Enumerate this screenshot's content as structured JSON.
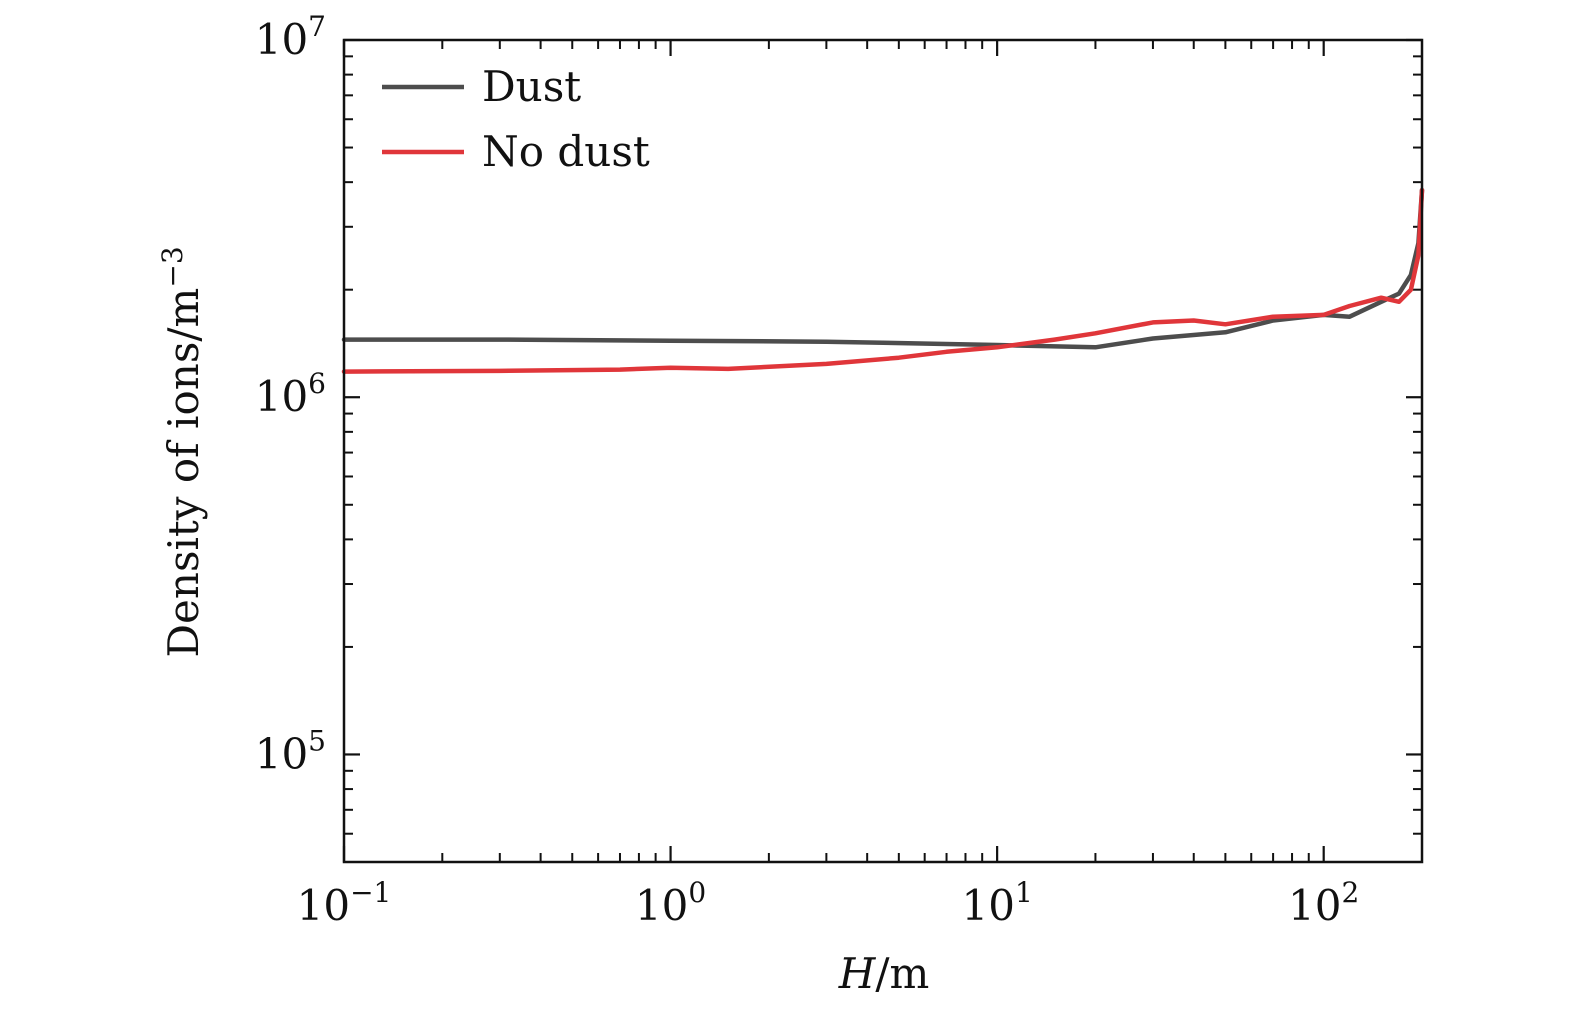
{
  "chart_data": {
    "type": "line",
    "xlabel": {
      "italic": "H",
      "rest": "/m"
    },
    "ylabel": {
      "text": "Density of ions/m",
      "sup": "−3"
    },
    "xscale": "log",
    "yscale": "log",
    "xlim": [
      0.1,
      200
    ],
    "ylim": [
      50000,
      10000000
    ],
    "grid": false,
    "legend_position": "top-left",
    "x_ticks": [
      {
        "value": 0.1,
        "base": "10",
        "exp": "−1"
      },
      {
        "value": 1,
        "base": "10",
        "exp": "0"
      },
      {
        "value": 10,
        "base": "10",
        "exp": "1"
      },
      {
        "value": 100,
        "base": "10",
        "exp": "2"
      }
    ],
    "y_ticks": [
      {
        "value": 100000,
        "base": "10",
        "exp": "5"
      },
      {
        "value": 1000000,
        "base": "10",
        "exp": "6"
      },
      {
        "value": 10000000,
        "base": "10",
        "exp": "7"
      }
    ],
    "series": [
      {
        "name": "Dust",
        "color": "#4d4d4d",
        "x": [
          0.1,
          0.3,
          1,
          3,
          10,
          20,
          30,
          50,
          70,
          100,
          120,
          150,
          170,
          185,
          195,
          200
        ],
        "y": [
          1450000,
          1450000,
          1440000,
          1430000,
          1400000,
          1380000,
          1460000,
          1520000,
          1640000,
          1700000,
          1680000,
          1850000,
          1950000,
          2200000,
          2700000,
          3800000
        ]
      },
      {
        "name": "No dust",
        "color": "#e0363a",
        "x": [
          0.1,
          0.3,
          0.7,
          1,
          1.5,
          3,
          5,
          7,
          10,
          15,
          20,
          30,
          40,
          50,
          70,
          100,
          120,
          150,
          170,
          185,
          195,
          200
        ],
        "y": [
          1180000,
          1185000,
          1195000,
          1210000,
          1200000,
          1240000,
          1290000,
          1340000,
          1380000,
          1450000,
          1510000,
          1620000,
          1640000,
          1600000,
          1680000,
          1700000,
          1800000,
          1900000,
          1850000,
          2000000,
          2500000,
          3800000
        ]
      }
    ]
  }
}
